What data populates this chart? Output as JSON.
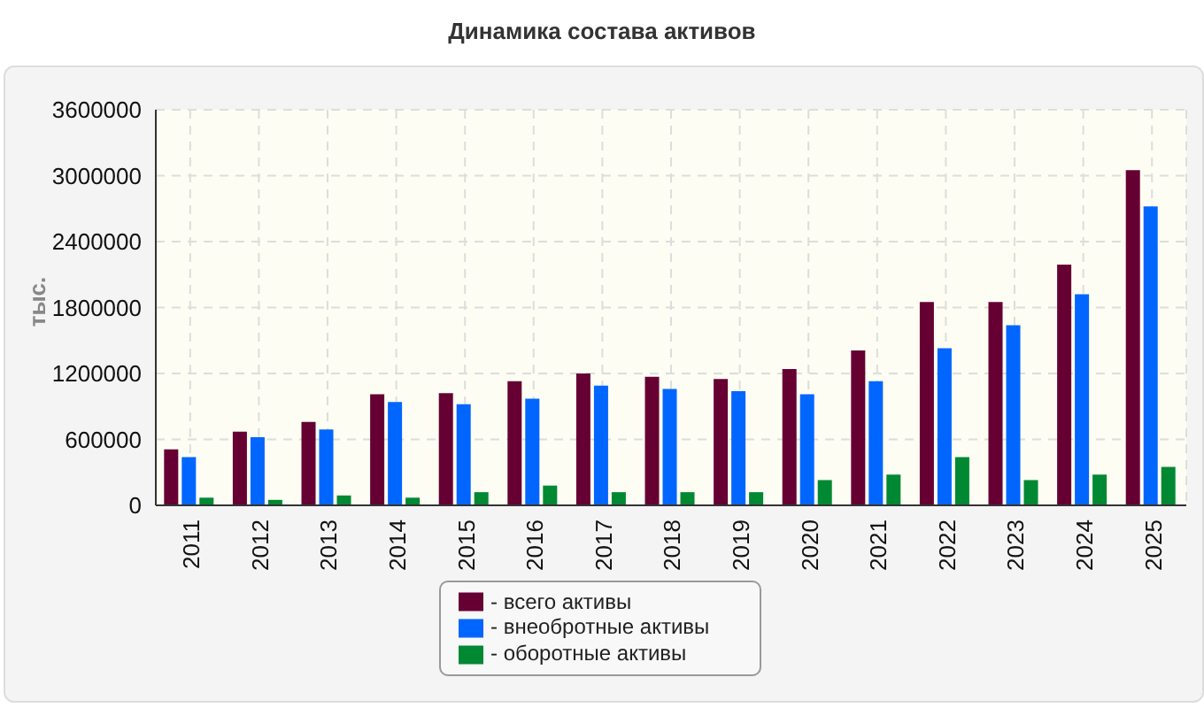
{
  "chart_data": {
    "type": "bar",
    "title": "Динамика состава активов",
    "ylabel": "тыс.",
    "categories": [
      "2011",
      "2012",
      "2013",
      "2014",
      "2015",
      "2016",
      "2017",
      "2018",
      "2019",
      "2020",
      "2021",
      "2022",
      "2023",
      "2024",
      "2025"
    ],
    "series": [
      {
        "name": "- всего активы",
        "color": "#660033",
        "values": [
          510000,
          670000,
          760000,
          1010000,
          1020000,
          1130000,
          1200000,
          1170000,
          1150000,
          1240000,
          1410000,
          1850000,
          1850000,
          2190000,
          3050000
        ]
      },
      {
        "name": "- внеобротные активы",
        "color": "#0066ff",
        "values": [
          440000,
          620000,
          690000,
          940000,
          920000,
          970000,
          1090000,
          1060000,
          1040000,
          1010000,
          1130000,
          1430000,
          1640000,
          1920000,
          2720000
        ]
      },
      {
        "name": "- оборотные активы",
        "color": "#008833",
        "values": [
          70000,
          50000,
          90000,
          70000,
          120000,
          180000,
          120000,
          120000,
          120000,
          230000,
          280000,
          440000,
          230000,
          280000,
          350000
        ]
      }
    ],
    "ylim": [
      0,
      3600000
    ],
    "yticks": [
      0,
      600000,
      1200000,
      1800000,
      2400000,
      3000000,
      3600000
    ],
    "grid": true,
    "legend": "bottom"
  }
}
